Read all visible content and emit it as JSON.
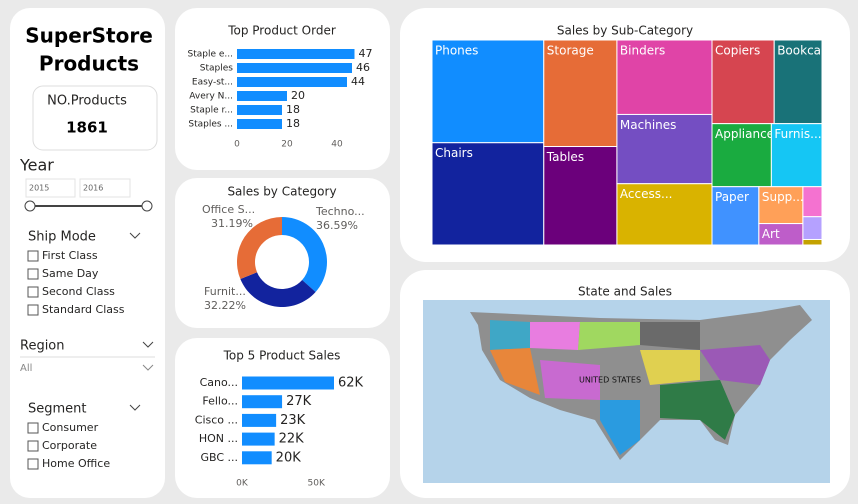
{
  "sidebar": {
    "title": [
      "SuperStore",
      "Products"
    ],
    "card_label": "NO.Products",
    "card_value": "1861",
    "year": {
      "label": "Year",
      "from": "2015",
      "to": "2016"
    },
    "ship_mode": {
      "label": "Ship Mode",
      "options": [
        "First Class",
        "Same Day",
        "Second Class",
        "Standard Class"
      ]
    },
    "region": {
      "label": "Region",
      "value": "All"
    },
    "segment": {
      "label": "Segment",
      "options": [
        "Consumer",
        "Corporate",
        "Home Office"
      ]
    }
  },
  "chart_data": [
    {
      "type": "hbar",
      "title": "Top Product Order",
      "categories": [
        "Staple e...",
        "Staples",
        "Easy-st...",
        "Avery N...",
        "Staple r...",
        "Staples ..."
      ],
      "values": [
        47,
        46,
        44,
        20,
        18,
        18
      ],
      "color": "#118dff",
      "xlim": [
        0,
        48
      ],
      "xticks": [
        0,
        20,
        40
      ]
    },
    {
      "type": "pie",
      "title": "Sales by Category",
      "categories": [
        "Techno...",
        "Furnit...",
        "Office S..."
      ],
      "values": [
        36.59,
        32.22,
        31.19
      ],
      "value_labels": [
        "36.59%",
        "32.22%",
        "31.19%"
      ],
      "colors": [
        "#118dff",
        "#12239e",
        "#e66c37"
      ]
    },
    {
      "type": "hbar",
      "title": "Top 5 Product Sales",
      "categories": [
        "Cano...",
        "Fello...",
        "Cisco ...",
        "HON ...",
        "GBC ..."
      ],
      "values": [
        62000,
        27000,
        23000,
        22000,
        20000
      ],
      "value_labels": [
        "62K",
        "27K",
        "23K",
        "22K",
        "20K"
      ],
      "color": "#118dff",
      "xlim": [
        0,
        62000
      ],
      "xticks": [
        {
          "value": 0,
          "label": "0K"
        },
        {
          "value": 50000,
          "label": "50K"
        }
      ]
    },
    {
      "type": "treemap",
      "title": "Sales by Sub-Category",
      "categories": [
        "Phones",
        "Chairs",
        "Storage",
        "Tables",
        "Binders",
        "Machines",
        "Access...",
        "Copiers",
        "Bookcases",
        "Appliances",
        "Furnis...",
        "Paper",
        "Supp...",
        "Art",
        null,
        null,
        null
      ],
      "values": [
        330007,
        328449,
        223844,
        206966,
        203413,
        189239,
        167380,
        149528,
        114880,
        107532,
        91705,
        78479,
        46674,
        27119,
        16476,
        12486,
        3024
      ],
      "colors": [
        "#118dff",
        "#12239e",
        "#e66c37",
        "#6b007b",
        "#e044a7",
        "#744ec2",
        "#d9b300",
        "#d64550",
        "#197278",
        "#1aab40",
        "#15c6f4",
        "#4092ff",
        "#ffa058",
        "#be5dc9",
        "#f472d0",
        "#b5a1ff",
        "#c4a200"
      ]
    },
    {
      "type": "map",
      "title": "State and Sales",
      "labels": [
        "UNITED STATES"
      ]
    }
  ]
}
